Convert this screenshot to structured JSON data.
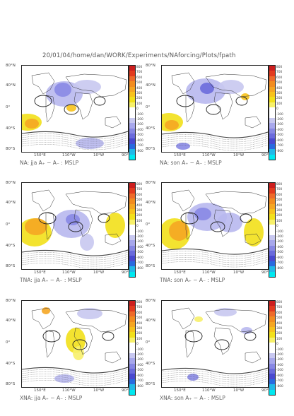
{
  "header": {
    "path": "20/01/04/home/dan/WORK/Experiments/NAforcing/Plots/fpath"
  },
  "axes": {
    "lat_labels": [
      "80°N",
      "40°N",
      "0°",
      "40°S",
      "80°S"
    ],
    "lon_labels": [
      "150°E",
      "110°W",
      "10°W",
      "90°E"
    ]
  },
  "colorbar": {
    "ticks": [
      "800",
      "700",
      "600",
      "500",
      "400",
      "300",
      "200",
      "100",
      "0",
      "-100",
      "-200",
      "-300",
      "-400",
      "-500",
      "-600",
      "-700",
      "-800"
    ],
    "colors": [
      "#cc1e1e",
      "#e23a1e",
      "#ee6a2a",
      "#f28c20",
      "#f5a623",
      "#f7c21c",
      "#f2e01a",
      "#f7f06a",
      "#ffffff",
      "#ffffff",
      "#c8c8f0",
      "#a8a8ec",
      "#8888e4",
      "#6b6bdc",
      "#4a4ad0",
      "#2a6ae0",
      "#22b8e8",
      "#00e8f0"
    ]
  },
  "panels": [
    {
      "id": "na-jja",
      "caption": "NA: jja A₊ − A₋ : MSLP"
    },
    {
      "id": "na-son",
      "caption": "NA: son A₊ − A₋ : MSLP"
    },
    {
      "id": "tna-jja",
      "caption": "TNA: jja A₊ − A₋ : MSLP"
    },
    {
      "id": "tna-son",
      "caption": "TNA: son A₊ − A₋ : MSLP"
    },
    {
      "id": "xna-jja",
      "caption": "XNA: jja A₊ − A₋ : MSLP"
    },
    {
      "id": "xna-son",
      "caption": "XNA: son A₊ − A₋ : MSLP"
    }
  ]
}
